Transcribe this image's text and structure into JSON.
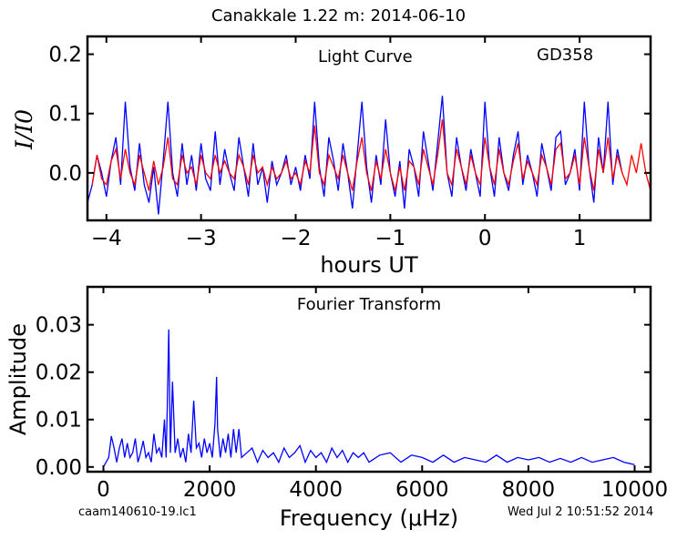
{
  "figure": {
    "title": "Canakkale 1.22 m:  2014-06-10",
    "footer_left": "caam140610-19.lc1",
    "footer_right": "Wed Jul  2 10:51:52 2014"
  },
  "chart_data": [
    {
      "type": "line",
      "panel": "light-curve",
      "title": "Light Curve",
      "annotation": "GD358",
      "xlabel": "hours UT",
      "ylabel": "I/I0",
      "xlim": [
        -4.2,
        1.75
      ],
      "ylim": [
        -0.08,
        0.23
      ],
      "xticks": [
        -4,
        -3,
        -2,
        -1,
        0,
        1
      ],
      "xtick_labels": [
        "−4",
        "−3",
        "−2",
        "−1",
        "0",
        "1"
      ],
      "yticks": [
        0.0,
        0.1,
        0.2
      ],
      "ytick_labels": [
        "0.0",
        "0.1",
        "0.2"
      ],
      "colors": {
        "data": "#0000ff",
        "model": "#ff0000"
      },
      "series": [
        {
          "key": "data",
          "x": [
            -4.2,
            -4.15,
            -4.1,
            -4.05,
            -4.0,
            -3.95,
            -3.9,
            -3.85,
            -3.8,
            -3.75,
            -3.7,
            -3.65,
            -3.6,
            -3.55,
            -3.5,
            -3.45,
            -3.4,
            -3.35,
            -3.3,
            -3.25,
            -3.2,
            -3.15,
            -3.1,
            -3.05,
            -3.0,
            -2.95,
            -2.9,
            -2.85,
            -2.8,
            -2.75,
            -2.7,
            -2.65,
            -2.6,
            -2.55,
            -2.5,
            -2.45,
            -2.4,
            -2.35,
            -2.3,
            -2.25,
            -2.2,
            -2.15,
            -2.1,
            -2.05,
            -2.0,
            -1.95,
            -1.9,
            -1.85,
            -1.8,
            -1.75,
            -1.7,
            -1.65,
            -1.6,
            -1.55,
            -1.5,
            -1.45,
            -1.4,
            -1.35,
            -1.3,
            -1.25,
            -1.2,
            -1.15,
            -1.1,
            -1.05,
            -1.0,
            -0.95,
            -0.9,
            -0.85,
            -0.8,
            -0.75,
            -0.7,
            -0.65,
            -0.6,
            -0.55,
            -0.5,
            -0.45,
            -0.4,
            -0.35,
            -0.3,
            -0.25,
            -0.2,
            -0.15,
            -0.1,
            -0.05,
            0.0,
            0.05,
            0.1,
            0.15,
            0.2,
            0.25,
            0.3,
            0.35,
            0.4,
            0.45,
            0.5,
            0.55,
            0.6,
            0.65,
            0.7,
            0.75,
            0.8,
            0.85,
            0.9,
            0.95,
            1.0,
            1.05,
            1.1,
            1.15,
            1.2,
            1.25,
            1.3,
            1.35,
            1.4,
            1.45
          ],
          "y": [
            -0.05,
            -0.02,
            0.03,
            0.0,
            -0.04,
            0.02,
            0.06,
            -0.02,
            0.12,
            0.01,
            -0.03,
            0.05,
            -0.02,
            -0.05,
            0.01,
            -0.07,
            0.02,
            0.12,
            0.0,
            -0.04,
            0.05,
            -0.02,
            0.03,
            -0.03,
            0.05,
            -0.01,
            -0.03,
            0.07,
            -0.02,
            0.04,
            0.0,
            -0.03,
            0.06,
            0.01,
            -0.04,
            0.05,
            -0.02,
            0.01,
            -0.05,
            0.02,
            -0.02,
            0.0,
            0.03,
            -0.02,
            0.01,
            -0.03,
            0.03,
            -0.01,
            0.12,
            0.01,
            -0.04,
            0.06,
            0.02,
            -0.03,
            0.05,
            0.0,
            -0.06,
            0.03,
            0.12,
            0.01,
            -0.05,
            0.03,
            -0.02,
            0.09,
            0.0,
            -0.04,
            0.02,
            -0.06,
            0.04,
            0.01,
            -0.04,
            0.07,
            0.02,
            -0.03,
            0.05,
            0.13,
            0.0,
            -0.04,
            0.06,
            0.01,
            -0.03,
            0.04,
            0.0,
            -0.04,
            0.12,
            0.01,
            -0.04,
            0.06,
            0.0,
            -0.03,
            0.03,
            0.07,
            -0.02,
            0.03,
            0.0,
            -0.04,
            0.05,
            0.01,
            -0.03,
            0.06,
            0.07,
            -0.02,
            0.0,
            0.04,
            -0.03,
            0.12,
            0.01,
            -0.05,
            0.06,
            0.0,
            0.12,
            -0.02,
            0.04,
            0.0
          ]
        },
        {
          "key": "model",
          "x": [
            -4.15,
            -4.1,
            -4.05,
            -4.0,
            -3.95,
            -3.9,
            -3.85,
            -3.8,
            -3.75,
            -3.7,
            -3.65,
            -3.6,
            -3.55,
            -3.5,
            -3.45,
            -3.4,
            -3.35,
            -3.3,
            -3.25,
            -3.2,
            -3.15,
            -3.1,
            -3.05,
            -3.0,
            -2.95,
            -2.9,
            -2.85,
            -2.8,
            -2.75,
            -2.7,
            -2.65,
            -2.6,
            -2.55,
            -2.5,
            -2.45,
            -2.4,
            -2.35,
            -2.3,
            -2.25,
            -2.2,
            -2.15,
            -2.1,
            -2.05,
            -2.0,
            -1.95,
            -1.9,
            -1.85,
            -1.8,
            -1.75,
            -1.7,
            -1.65,
            -1.6,
            -1.55,
            -1.5,
            -1.45,
            -1.4,
            -1.35,
            -1.3,
            -1.25,
            -1.2,
            -1.15,
            -1.1,
            -1.05,
            -1.0,
            -0.95,
            -0.9,
            -0.85,
            -0.8,
            -0.75,
            -0.7,
            -0.65,
            -0.6,
            -0.55,
            -0.5,
            -0.45,
            -0.4,
            -0.35,
            -0.3,
            -0.25,
            -0.2,
            -0.15,
            -0.1,
            -0.05,
            0.0,
            0.05,
            0.1,
            0.15,
            0.2,
            0.25,
            0.3,
            0.35,
            0.4,
            0.45,
            0.5,
            0.55,
            0.6,
            0.65,
            0.7,
            0.75,
            0.8,
            0.85,
            0.9,
            0.95,
            1.0,
            1.05,
            1.1,
            1.15,
            1.2,
            1.25,
            1.3,
            1.35,
            1.4,
            1.45,
            1.5,
            1.55,
            1.6,
            1.65,
            1.7,
            1.75
          ],
          "y": [
            -0.02,
            0.03,
            -0.01,
            -0.02,
            0.02,
            0.04,
            -0.01,
            0.04,
            0.0,
            -0.02,
            0.03,
            0.0,
            -0.03,
            0.02,
            -0.02,
            0.01,
            0.06,
            -0.01,
            -0.02,
            0.03,
            0.0,
            0.01,
            -0.02,
            0.03,
            0.0,
            -0.01,
            0.03,
            0.0,
            0.02,
            0.0,
            -0.01,
            0.03,
            0.01,
            -0.02,
            0.03,
            0.0,
            0.01,
            -0.02,
            0.01,
            -0.01,
            0.0,
            0.02,
            -0.01,
            0.0,
            -0.02,
            0.02,
            0.0,
            0.08,
            0.0,
            -0.02,
            0.03,
            0.01,
            -0.01,
            0.03,
            0.0,
            -0.03,
            0.02,
            0.06,
            0.0,
            -0.03,
            0.02,
            -0.01,
            0.04,
            0.0,
            -0.03,
            0.01,
            -0.03,
            0.02,
            0.01,
            -0.02,
            0.04,
            0.01,
            -0.02,
            0.03,
            0.09,
            0.0,
            -0.02,
            0.04,
            0.01,
            -0.02,
            0.03,
            0.0,
            -0.02,
            0.06,
            0.01,
            -0.02,
            0.04,
            0.0,
            -0.02,
            0.02,
            0.05,
            -0.01,
            0.02,
            0.0,
            -0.02,
            0.03,
            0.01,
            -0.02,
            0.04,
            0.05,
            -0.01,
            0.0,
            0.03,
            -0.02,
            0.06,
            0.01,
            -0.03,
            0.04,
            0.0,
            0.06,
            -0.01,
            0.03,
            0.0,
            -0.02,
            0.03,
            0.0,
            0.05,
            0.0,
            -0.03
          ]
        }
      ]
    },
    {
      "type": "line",
      "panel": "fourier-transform",
      "title": "Fourier Transform",
      "xlabel": "Frequency (μHz)",
      "ylabel": "Amplitude",
      "xlim": [
        -300,
        10300
      ],
      "ylim": [
        -0.001,
        0.038
      ],
      "xticks": [
        0,
        2000,
        4000,
        6000,
        8000,
        10000
      ],
      "xtick_labels": [
        "0",
        "2000",
        "4000",
        "6000",
        "8000",
        "10000"
      ],
      "yticks": [
        0.0,
        0.01,
        0.02,
        0.03
      ],
      "ytick_labels": [
        "0.00",
        "0.01",
        "0.02",
        "0.03"
      ],
      "colors": {
        "data": "#0000ff"
      },
      "series": [
        {
          "key": "amplitude",
          "x": [
            0,
            100,
            150,
            200,
            250,
            300,
            350,
            400,
            450,
            500,
            550,
            600,
            650,
            700,
            750,
            800,
            850,
            900,
            950,
            1000,
            1050,
            1100,
            1150,
            1180,
            1200,
            1230,
            1260,
            1300,
            1350,
            1400,
            1450,
            1500,
            1550,
            1600,
            1650,
            1700,
            1750,
            1800,
            1850,
            1900,
            1950,
            2000,
            2050,
            2100,
            2130,
            2150,
            2200,
            2250,
            2300,
            2350,
            2400,
            2450,
            2500,
            2550,
            2600,
            2700,
            2800,
            2900,
            3000,
            3100,
            3200,
            3300,
            3400,
            3500,
            3600,
            3700,
            3800,
            3900,
            4000,
            4100,
            4200,
            4300,
            4400,
            4500,
            4600,
            4700,
            4800,
            4900,
            5000,
            5200,
            5400,
            5600,
            5800,
            6000,
            6200,
            6400,
            6600,
            6800,
            7000,
            7200,
            7400,
            7600,
            7800,
            8000,
            8200,
            8400,
            8600,
            8800,
            9000,
            9200,
            9400,
            9600,
            9800,
            10000
          ],
          "y": [
            0.0,
            0.002,
            0.0065,
            0.004,
            0.001,
            0.004,
            0.006,
            0.002,
            0.005,
            0.002,
            0.003,
            0.006,
            0.001,
            0.003,
            0.0055,
            0.002,
            0.003,
            0.001,
            0.007,
            0.003,
            0.004,
            0.002,
            0.01,
            0.002,
            0.012,
            0.029,
            0.003,
            0.018,
            0.003,
            0.006,
            0.002,
            0.004,
            0.001,
            0.007,
            0.003,
            0.014,
            0.004,
            0.005,
            0.002,
            0.006,
            0.003,
            0.005,
            0.002,
            0.009,
            0.019,
            0.008,
            0.002,
            0.006,
            0.003,
            0.007,
            0.002,
            0.008,
            0.003,
            0.008,
            0.002,
            0.003,
            0.004,
            0.001,
            0.0035,
            0.002,
            0.003,
            0.001,
            0.004,
            0.002,
            0.003,
            0.0045,
            0.001,
            0.0035,
            0.002,
            0.003,
            0.001,
            0.004,
            0.002,
            0.0035,
            0.001,
            0.003,
            0.002,
            0.003,
            0.001,
            0.0025,
            0.003,
            0.001,
            0.0025,
            0.002,
            0.001,
            0.0025,
            0.001,
            0.002,
            0.0015,
            0.001,
            0.0025,
            0.001,
            0.002,
            0.0015,
            0.002,
            0.001,
            0.0018,
            0.001,
            0.002,
            0.001,
            0.0015,
            0.002,
            0.001,
            0.0005
          ]
        }
      ]
    }
  ]
}
